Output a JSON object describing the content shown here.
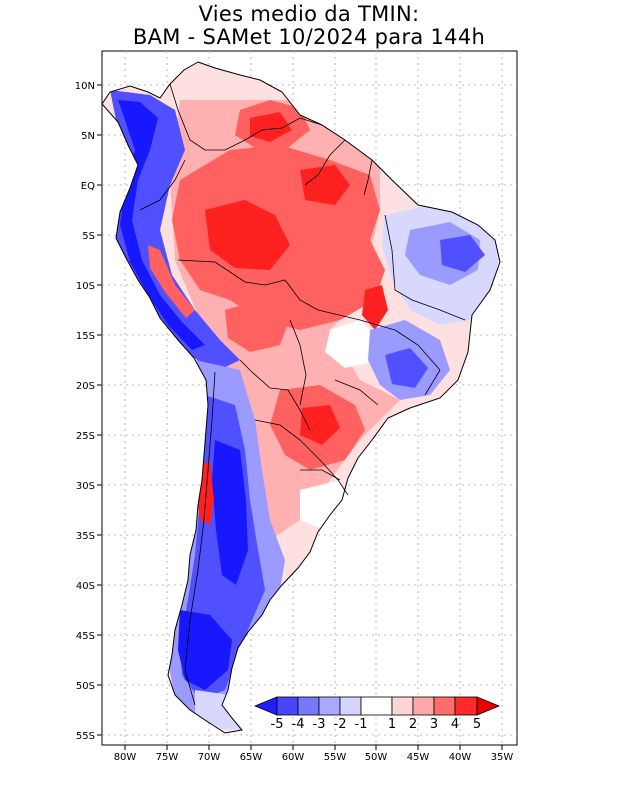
{
  "title": {
    "line1": "Vies medio da TMIN:",
    "line2": "BAM - SAMet 10/2024  para 144h"
  },
  "axes": {
    "lat_labels": [
      "10N",
      "5N",
      "EQ",
      "5S",
      "10S",
      "15S",
      "20S",
      "25S",
      "30S",
      "35S",
      "40S",
      "45S",
      "50S",
      "55S"
    ],
    "lon_labels": [
      "80W",
      "75W",
      "70W",
      "65W",
      "60W",
      "55W",
      "50W",
      "45W",
      "40W",
      "35W"
    ]
  },
  "colorbar": {
    "labels": [
      "-5",
      "-4",
      "-3",
      "-2",
      "-1",
      "1",
      "2",
      "3",
      "4",
      "5"
    ],
    "colors": [
      "#1e1eff",
      "#4646ff",
      "#7878ff",
      "#a8a8ff",
      "#d4d4ff",
      "#ffffff",
      "#ffd4d4",
      "#ffa8a8",
      "#ff6e6e",
      "#ff2a2a",
      "#e80000"
    ]
  },
  "map_colors": {
    "strong_warm": "#ff2020",
    "warm": "#ff6060",
    "mild_warm": "#ffb0b0",
    "light_warm": "#ffe0e0",
    "neutral": "#ffffff",
    "light_cold": "#d8d8ff",
    "mild_cold": "#9a9aff",
    "cold": "#5050ff",
    "strong_cold": "#1818ff",
    "border": "#000000"
  }
}
